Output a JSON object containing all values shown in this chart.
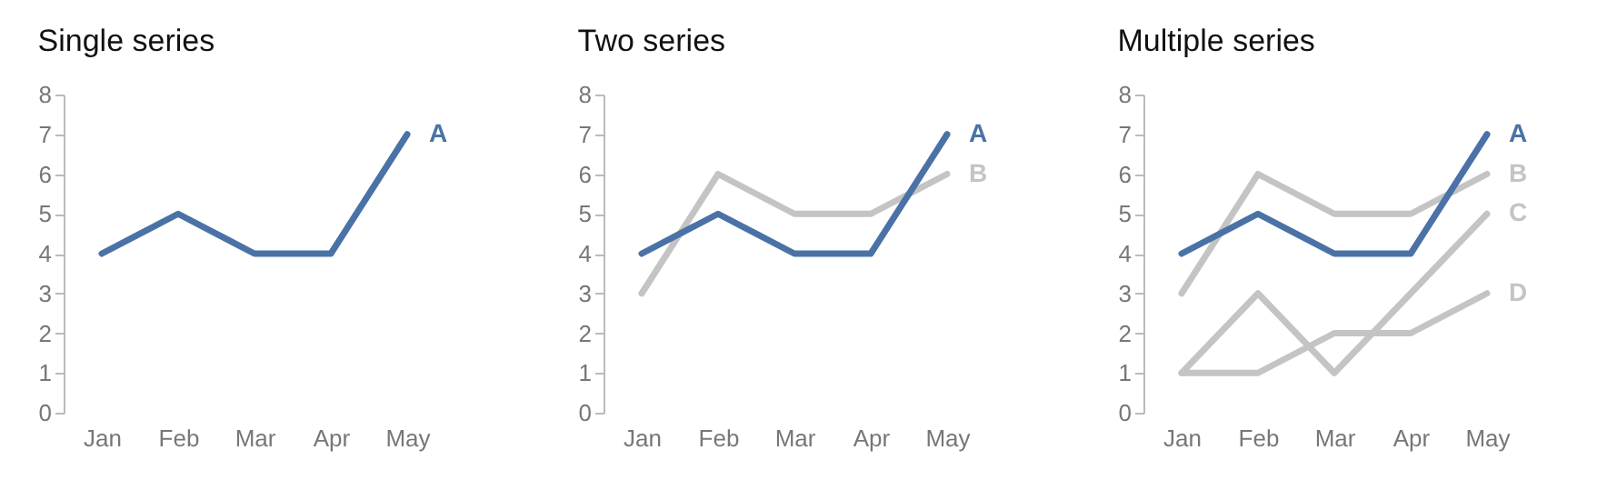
{
  "chart_data": [
    {
      "type": "line",
      "title": "Single series",
      "categories": [
        "Jan",
        "Feb",
        "Mar",
        "Apr",
        "May"
      ],
      "ylim": [
        0,
        8
      ],
      "yticks": [
        0,
        1,
        2,
        3,
        4,
        5,
        6,
        7,
        8
      ],
      "grid": false,
      "series": [
        {
          "name": "A",
          "color": "#4a72a6",
          "values": [
            4,
            5,
            4,
            4,
            7
          ]
        }
      ]
    },
    {
      "type": "line",
      "title": "Two series",
      "categories": [
        "Jan",
        "Feb",
        "Mar",
        "Apr",
        "May"
      ],
      "ylim": [
        0,
        8
      ],
      "yticks": [
        0,
        1,
        2,
        3,
        4,
        5,
        6,
        7,
        8
      ],
      "grid": false,
      "series": [
        {
          "name": "B",
          "color": "#c4c4c4",
          "values": [
            3,
            6,
            5,
            5,
            6
          ]
        },
        {
          "name": "A",
          "color": "#4a72a6",
          "values": [
            4,
            5,
            4,
            4,
            7
          ]
        }
      ]
    },
    {
      "type": "line",
      "title": "Multiple series",
      "categories": [
        "Jan",
        "Feb",
        "Mar",
        "Apr",
        "May"
      ],
      "ylim": [
        0,
        8
      ],
      "yticks": [
        0,
        1,
        2,
        3,
        4,
        5,
        6,
        7,
        8
      ],
      "grid": false,
      "series": [
        {
          "name": "D",
          "color": "#c4c4c4",
          "values": [
            1,
            1,
            2,
            2,
            3
          ]
        },
        {
          "name": "C",
          "color": "#c4c4c4",
          "values": [
            1,
            3,
            1,
            3,
            5
          ]
        },
        {
          "name": "B",
          "color": "#c4c4c4",
          "values": [
            3,
            6,
            5,
            5,
            6
          ]
        },
        {
          "name": "A",
          "color": "#4a72a6",
          "values": [
            4,
            5,
            4,
            4,
            7
          ]
        }
      ]
    }
  ]
}
